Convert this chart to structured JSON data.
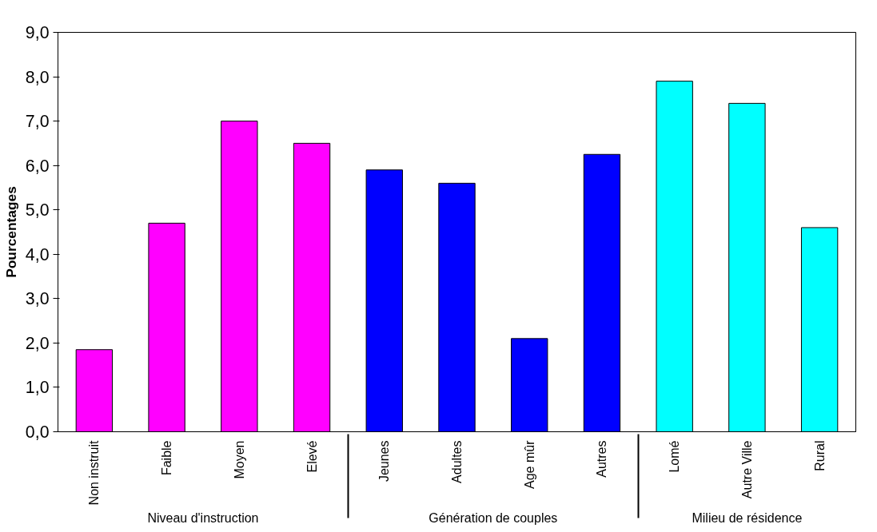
{
  "chart_data": {
    "type": "bar",
    "ylabel": "Pourcentages",
    "categories": [
      "Non instruit",
      "Faible",
      "Moyen",
      "Elevé",
      "Jeunes",
      "Adultes",
      "Age mûr",
      "Autres",
      "Lomé",
      "Autre Ville",
      "Rural"
    ],
    "values": [
      1.85,
      4.7,
      7.0,
      6.5,
      5.9,
      5.6,
      2.1,
      6.25,
      7.9,
      7.4,
      4.6
    ],
    "colors": [
      "#ff00ff",
      "#ff00ff",
      "#ff00ff",
      "#ff00ff",
      "#0000ff",
      "#0000ff",
      "#0000ff",
      "#0000ff",
      "#00ffff",
      "#00ffff",
      "#00ffff"
    ],
    "annotations": [
      "Niveau d'instruction",
      "Génération de couples",
      "Milieu de résidence"
    ],
    "ylim": [
      0,
      9
    ],
    "yticks": [
      {
        "value": 0,
        "label": "0,0"
      },
      {
        "value": 1,
        "label": "1,0"
      },
      {
        "value": 2,
        "label": "2,0"
      },
      {
        "value": 3,
        "label": "3,0"
      },
      {
        "value": 4,
        "label": "4,0"
      },
      {
        "value": 5,
        "label": "5,0"
      },
      {
        "value": 6,
        "label": "6,0"
      },
      {
        "value": 7,
        "label": "7,0"
      },
      {
        "value": 8,
        "label": "8,0"
      },
      {
        "value": 9,
        "label": "9,0"
      }
    ],
    "grid": false
  }
}
